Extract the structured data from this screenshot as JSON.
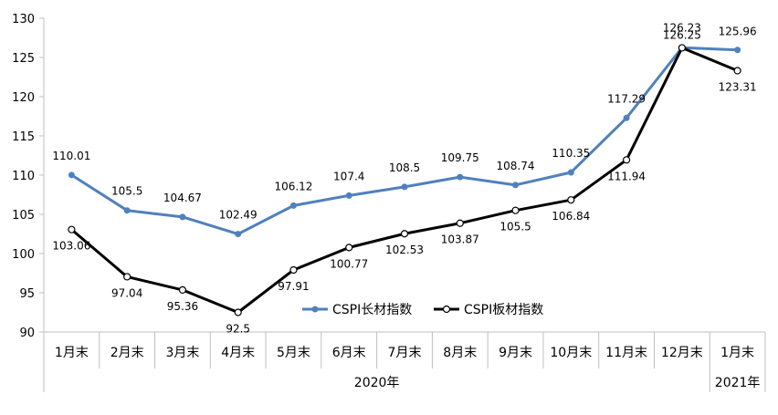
{
  "chart_data": {
    "type": "line",
    "categories": [
      "1月末",
      "2月末",
      "3月末",
      "4月末",
      "5月末",
      "6月末",
      "7月末",
      "8月末",
      "9月末",
      "10月末",
      "11月末",
      "12月末",
      "1月末"
    ],
    "year_groups": [
      {
        "label": "2020年",
        "from": 0,
        "to": 11
      },
      {
        "label": "2021年",
        "from": 12,
        "to": 12
      }
    ],
    "series": [
      {
        "name": "CSPI长材指数",
        "color": "#4F81BD",
        "values": [
          110.01,
          105.5,
          104.67,
          102.49,
          106.12,
          107.4,
          108.5,
          109.75,
          108.74,
          110.35,
          117.29,
          126.25,
          125.96
        ],
        "labels": [
          "110.01",
          "105.5",
          "104.67",
          "102.49",
          "106.12",
          "107.4",
          "108.5",
          "109.75",
          "108.74",
          "110.35",
          "117.29",
          "126.25",
          "125.96"
        ]
      },
      {
        "name": "CSPI板材指数",
        "color": "#000000",
        "values": [
          103.06,
          97.04,
          95.36,
          92.5,
          97.91,
          100.77,
          102.53,
          103.87,
          105.5,
          106.84,
          111.94,
          126.23,
          123.31
        ],
        "labels": [
          "103.06",
          "97.04",
          "95.36",
          "92.5",
          "97.91",
          "100.77",
          "102.53",
          "103.87",
          "105.5",
          "106.84",
          "111.94",
          "126.23",
          "123.31"
        ]
      }
    ],
    "yticks": [
      90,
      95,
      100,
      105,
      110,
      115,
      120,
      125,
      130
    ],
    "ylim": [
      90,
      130
    ],
    "grid": false,
    "legend": "inside-bottom-center"
  }
}
